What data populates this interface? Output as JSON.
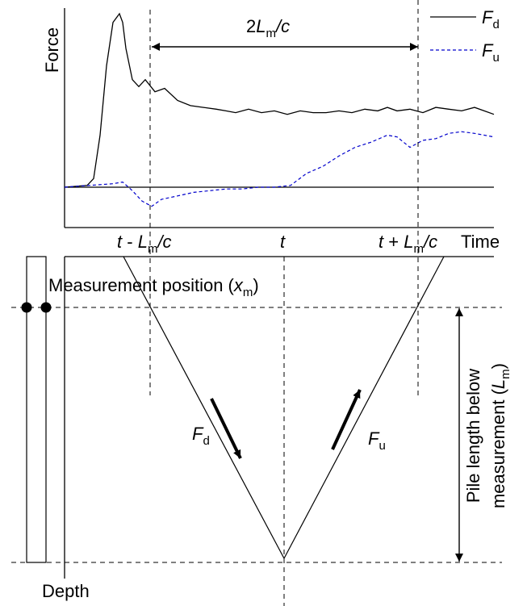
{
  "plot": {
    "y_axis_label": "Force",
    "x_axis_label": "Time",
    "t_label": "t",
    "t_minus": {
      "t": "t",
      "op": " - ",
      "L": "L",
      "sub": "m",
      "c": "/c"
    },
    "t_plus": {
      "t": "t",
      "op": " + ",
      "L": "L",
      "sub": "m",
      "c": "/c"
    },
    "span": {
      "two": "2",
      "L": "L",
      "sub": "m",
      "c": "/c"
    }
  },
  "legend": {
    "items": [
      {
        "symbol": "F",
        "sub": "d",
        "style": "solid",
        "color": "#000000"
      },
      {
        "symbol": "F",
        "sub": "u",
        "style": "dashed",
        "color": "#0000cc"
      }
    ]
  },
  "diagram": {
    "measurement_label": "Measurement position (",
    "measurement_var": "x",
    "measurement_sub": "m",
    "measurement_close": ")",
    "depth_label": "Depth",
    "pile_length_line1": "Pile length below",
    "pile_length_line2": "measurement (",
    "pile_length_var": "L",
    "pile_length_sub": "m",
    "pile_length_close": ")",
    "wave_down": {
      "symbol": "F",
      "sub": "d"
    },
    "wave_up": {
      "symbol": "F",
      "sub": "u"
    }
  },
  "chart_data": {
    "type": "line",
    "xlabel": "Time",
    "ylabel": "Force",
    "x_ticks": [
      "t - Lm/c",
      "t",
      "t + Lm/c"
    ],
    "series": [
      {
        "name": "Fd",
        "line": "solid",
        "color": "#000000",
        "x": [
          0,
          0.14,
          0.18,
          0.22,
          0.26,
          0.3,
          0.34,
          0.36,
          0.38,
          0.42,
          0.46,
          0.5,
          0.56,
          0.62,
          0.7,
          0.78,
          0.86,
          0.94,
          1.0,
          1.06,
          1.14,
          1.22,
          1.3,
          1.38,
          1.46,
          1.54,
          1.62,
          1.7,
          1.78,
          1.86,
          1.94,
          2.0,
          2.06,
          2.14,
          2.22,
          2.3,
          2.38,
          2.46,
          2.54,
          2.6,
          2.66
        ],
        "y": [
          0,
          0.01,
          0.05,
          0.3,
          0.7,
          0.95,
          1.0,
          0.95,
          0.8,
          0.62,
          0.58,
          0.62,
          0.55,
          0.57,
          0.5,
          0.47,
          0.46,
          0.45,
          0.44,
          0.43,
          0.45,
          0.43,
          0.44,
          0.42,
          0.44,
          0.43,
          0.43,
          0.44,
          0.43,
          0.45,
          0.44,
          0.46,
          0.44,
          0.45,
          0.43,
          0.46,
          0.45,
          0.44,
          0.46,
          0.44,
          0.42
        ]
      },
      {
        "name": "Fu",
        "line": "dashed",
        "color": "#0000cc",
        "x": [
          0,
          0.3,
          0.36,
          0.42,
          0.48,
          0.54,
          0.6,
          0.7,
          0.8,
          0.9,
          1.0,
          1.1,
          1.2,
          1.3,
          1.4,
          1.5,
          1.6,
          1.7,
          1.8,
          1.9,
          2.0,
          2.06,
          2.14,
          2.22,
          2.3,
          2.38,
          2.46,
          2.54,
          2.6,
          2.66
        ],
        "y": [
          0,
          0.02,
          0.03,
          -0.02,
          -0.08,
          -0.11,
          -0.07,
          -0.05,
          -0.03,
          -0.02,
          -0.01,
          -0.01,
          0.0,
          0.0,
          0.01,
          0.08,
          0.12,
          0.18,
          0.23,
          0.26,
          0.3,
          0.29,
          0.23,
          0.27,
          0.28,
          0.31,
          0.32,
          0.31,
          0.3,
          0.29
        ]
      }
    ]
  }
}
